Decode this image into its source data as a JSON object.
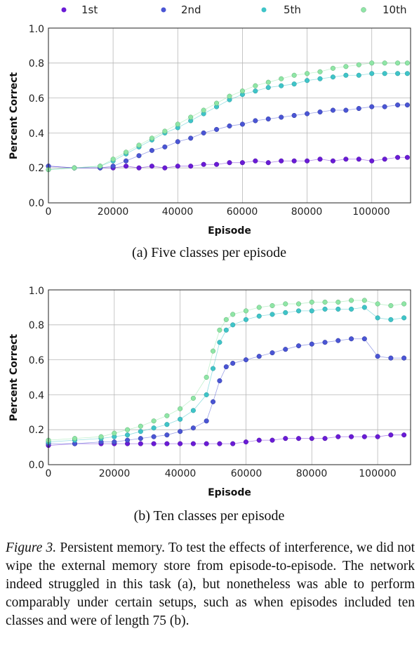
{
  "legend": {
    "entries": [
      {
        "label": "1st",
        "color": "#6a1bd6"
      },
      {
        "label": "2nd",
        "color": "#4a55d4"
      },
      {
        "label": "5th",
        "color": "#3fc4c8"
      },
      {
        "label": "10th",
        "color": "#8fe6a6"
      }
    ]
  },
  "chart_data": [
    {
      "type": "scatter",
      "caption": "(a) Five classes per episode",
      "xlabel": "Episode",
      "ylabel": "Percent Correct",
      "xlim": [
        0,
        112000
      ],
      "ylim": [
        0,
        1.0
      ],
      "xticks": [
        "0",
        "20000",
        "40000",
        "60000",
        "80000",
        "100000"
      ],
      "xtick_values": [
        0,
        20000,
        40000,
        60000,
        80000,
        100000
      ],
      "yticks": [
        "0.0",
        "0.2",
        "0.4",
        "0.6",
        "0.8",
        "1.0"
      ],
      "ytick_values": [
        0,
        0.2,
        0.4,
        0.6,
        0.8,
        1.0
      ],
      "grid": true,
      "series": [
        {
          "name": "1st",
          "x": [
            0,
            8000,
            16000,
            20000,
            24000,
            28000,
            32000,
            36000,
            40000,
            44000,
            48000,
            52000,
            56000,
            60000,
            64000,
            68000,
            72000,
            76000,
            80000,
            84000,
            88000,
            92000,
            96000,
            100000,
            104000,
            108000,
            111000
          ],
          "y": [
            0.21,
            0.2,
            0.2,
            0.2,
            0.21,
            0.2,
            0.21,
            0.2,
            0.21,
            0.21,
            0.22,
            0.22,
            0.23,
            0.23,
            0.24,
            0.23,
            0.24,
            0.24,
            0.24,
            0.25,
            0.24,
            0.25,
            0.25,
            0.24,
            0.25,
            0.26,
            0.26
          ]
        },
        {
          "name": "2nd",
          "x": [
            0,
            8000,
            16000,
            20000,
            24000,
            28000,
            32000,
            36000,
            40000,
            44000,
            48000,
            52000,
            56000,
            60000,
            64000,
            68000,
            72000,
            76000,
            80000,
            84000,
            88000,
            92000,
            96000,
            100000,
            104000,
            108000,
            111000
          ],
          "y": [
            0.21,
            0.2,
            0.2,
            0.21,
            0.24,
            0.27,
            0.3,
            0.32,
            0.35,
            0.37,
            0.4,
            0.42,
            0.44,
            0.45,
            0.47,
            0.48,
            0.49,
            0.5,
            0.51,
            0.52,
            0.53,
            0.53,
            0.54,
            0.55,
            0.55,
            0.56,
            0.56
          ]
        },
        {
          "name": "5th",
          "x": [
            0,
            8000,
            16000,
            20000,
            24000,
            28000,
            32000,
            36000,
            40000,
            44000,
            48000,
            52000,
            56000,
            60000,
            64000,
            68000,
            72000,
            76000,
            80000,
            84000,
            88000,
            92000,
            96000,
            100000,
            104000,
            108000,
            111000
          ],
          "y": [
            0.19,
            0.2,
            0.21,
            0.24,
            0.28,
            0.32,
            0.36,
            0.4,
            0.43,
            0.47,
            0.51,
            0.55,
            0.59,
            0.62,
            0.64,
            0.66,
            0.67,
            0.68,
            0.7,
            0.71,
            0.72,
            0.73,
            0.73,
            0.74,
            0.74,
            0.74,
            0.74
          ]
        },
        {
          "name": "10th",
          "x": [
            0,
            8000,
            16000,
            20000,
            24000,
            28000,
            32000,
            36000,
            40000,
            44000,
            48000,
            52000,
            56000,
            60000,
            64000,
            68000,
            72000,
            76000,
            80000,
            84000,
            88000,
            92000,
            96000,
            100000,
            104000,
            108000,
            111000
          ],
          "y": [
            0.19,
            0.2,
            0.21,
            0.25,
            0.29,
            0.33,
            0.37,
            0.41,
            0.45,
            0.49,
            0.53,
            0.57,
            0.61,
            0.64,
            0.67,
            0.69,
            0.71,
            0.73,
            0.74,
            0.75,
            0.77,
            0.78,
            0.79,
            0.8,
            0.8,
            0.8,
            0.8
          ]
        }
      ]
    },
    {
      "type": "scatter",
      "caption": "(b) Ten classes per episode",
      "xlabel": "Episode",
      "ylabel": "Percent Correct",
      "xlim": [
        0,
        110000
      ],
      "ylim": [
        0,
        1.0
      ],
      "xticks": [
        "0",
        "20000",
        "40000",
        "60000",
        "80000",
        "100000"
      ],
      "xtick_values": [
        0,
        20000,
        40000,
        60000,
        80000,
        100000
      ],
      "yticks": [
        "0.0",
        "0.2",
        "0.4",
        "0.6",
        "0.8",
        "1.0"
      ],
      "ytick_values": [
        0,
        0.2,
        0.4,
        0.6,
        0.8,
        1.0
      ],
      "grid": true,
      "series": [
        {
          "name": "1st",
          "x": [
            0,
            8000,
            16000,
            20000,
            24000,
            28000,
            32000,
            36000,
            40000,
            44000,
            48000,
            52000,
            56000,
            60000,
            64000,
            68000,
            72000,
            76000,
            80000,
            84000,
            88000,
            92000,
            96000,
            100000,
            104000,
            108000
          ],
          "y": [
            0.11,
            0.12,
            0.12,
            0.12,
            0.12,
            0.12,
            0.12,
            0.12,
            0.12,
            0.12,
            0.12,
            0.12,
            0.12,
            0.13,
            0.14,
            0.14,
            0.15,
            0.15,
            0.15,
            0.15,
            0.16,
            0.16,
            0.16,
            0.16,
            0.17,
            0.17
          ]
        },
        {
          "name": "2nd",
          "x": [
            0,
            8000,
            16000,
            20000,
            24000,
            28000,
            32000,
            36000,
            40000,
            44000,
            48000,
            50000,
            52000,
            54000,
            56000,
            60000,
            64000,
            68000,
            72000,
            76000,
            80000,
            84000,
            88000,
            92000,
            96000,
            100000,
            104000,
            108000
          ],
          "y": [
            0.12,
            0.12,
            0.13,
            0.13,
            0.14,
            0.15,
            0.16,
            0.17,
            0.19,
            0.21,
            0.25,
            0.36,
            0.48,
            0.56,
            0.58,
            0.6,
            0.62,
            0.64,
            0.66,
            0.68,
            0.69,
            0.7,
            0.71,
            0.72,
            0.72,
            0.62,
            0.61,
            0.61
          ]
        },
        {
          "name": "5th",
          "x": [
            0,
            8000,
            16000,
            20000,
            24000,
            28000,
            32000,
            36000,
            40000,
            44000,
            48000,
            50000,
            52000,
            54000,
            56000,
            60000,
            64000,
            68000,
            72000,
            76000,
            80000,
            84000,
            88000,
            92000,
            96000,
            100000,
            104000,
            108000
          ],
          "y": [
            0.13,
            0.14,
            0.15,
            0.16,
            0.17,
            0.19,
            0.21,
            0.23,
            0.26,
            0.31,
            0.4,
            0.55,
            0.7,
            0.77,
            0.8,
            0.83,
            0.85,
            0.86,
            0.87,
            0.88,
            0.88,
            0.89,
            0.89,
            0.89,
            0.9,
            0.84,
            0.83,
            0.84
          ]
        },
        {
          "name": "10th",
          "x": [
            0,
            8000,
            16000,
            20000,
            24000,
            28000,
            32000,
            36000,
            40000,
            44000,
            48000,
            50000,
            52000,
            54000,
            56000,
            60000,
            64000,
            68000,
            72000,
            76000,
            80000,
            84000,
            88000,
            92000,
            96000,
            100000,
            104000,
            108000
          ],
          "y": [
            0.14,
            0.15,
            0.16,
            0.18,
            0.2,
            0.22,
            0.25,
            0.28,
            0.32,
            0.38,
            0.5,
            0.65,
            0.77,
            0.83,
            0.86,
            0.88,
            0.9,
            0.91,
            0.92,
            0.92,
            0.93,
            0.93,
            0.93,
            0.94,
            0.94,
            0.92,
            0.91,
            0.92
          ]
        }
      ]
    }
  ],
  "caption": {
    "lead": "Figure 3.",
    "text": " Persistent memory.  To test the effects of interference, we did not wipe the external memory store from episode-to-episode.  The network indeed struggled in this task (a), but nonetheless was able to perform comparably under certain setups, such as when episodes included ten classes and were of length 75 (b)."
  }
}
